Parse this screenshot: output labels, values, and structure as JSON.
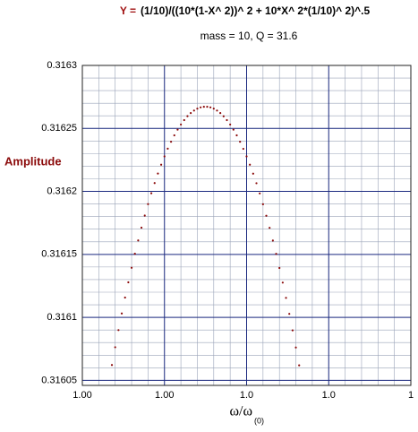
{
  "chart_data": {
    "type": "scatter",
    "title_parts": [
      "Y =",
      "(1/10)/((10*(1-X^ 2))^ 2 + 10*X^ 2*(1/10)^ 2)^.5"
    ],
    "subtitle": "mass = 10, Q = 31.6",
    "ylabel": "Amplitude",
    "xlabel": "ω/ω",
    "xlabel_sub": "(0)",
    "xlim": [
      0.999,
      1.001
    ],
    "xticks": [
      {
        "value": 0.999,
        "label": "1.00"
      },
      {
        "value": 0.9995,
        "label": "1.00"
      },
      {
        "value": 1.0,
        "label": "1.0"
      },
      {
        "value": 1.0005,
        "label": "1.0"
      },
      {
        "value": 1.001,
        "label": "1"
      }
    ],
    "ylim": [
      0.316046,
      0.3163
    ],
    "yticks": [
      0.31605,
      0.3161,
      0.31615,
      0.3162,
      0.31625,
      0.3163
    ],
    "grid": true,
    "minor_divisions": 5,
    "color": "#8b0a0a",
    "x": [
      0.99918,
      0.9992,
      0.99922,
      0.99924,
      0.99926,
      0.99928,
      0.9993,
      0.99932,
      0.99934,
      0.99936,
      0.99938,
      0.9994,
      0.99942,
      0.99944,
      0.99946,
      0.99948,
      0.9995,
      0.99952,
      0.99954,
      0.99956,
      0.99958,
      0.9996,
      0.99962,
      0.99964,
      0.99966,
      0.99968,
      0.9997,
      0.99972,
      0.99974,
      0.99976,
      0.99978,
      0.9998,
      0.99982,
      0.99984,
      0.99986,
      0.99988,
      0.9999,
      0.99992,
      0.99994,
      0.99996,
      0.99998,
      1,
      1.00002,
      1.00004,
      1.00006,
      1.00008,
      1.0001,
      1.00012,
      1.00014,
      1.00016,
      1.00018,
      1.0002,
      1.00022,
      1.00024,
      1.00026,
      1.00028,
      1.0003,
      1.00032
    ],
    "values": [
      0.3160622,
      0.3160763,
      0.3160899,
      0.3161031,
      0.3161157,
      0.3161278,
      0.3161394,
      0.3161505,
      0.3161611,
      0.3161712,
      0.3161808,
      0.3161899,
      0.3161985,
      0.3162066,
      0.3162142,
      0.3162212,
      0.3162278,
      0.3162339,
      0.3162394,
      0.3162445,
      0.316249,
      0.3162531,
      0.3162566,
      0.3162597,
      0.3162622,
      0.3162642,
      0.3162657,
      0.3162667,
      0.3162672,
      0.3162672,
      0.3162667,
      0.3162657,
      0.3162642,
      0.3162622,
      0.3162596,
      0.3162566,
      0.3162531,
      0.316249,
      0.3162445,
      0.3162394,
      0.3162338,
      0.3162278,
      0.3162212,
      0.3162141,
      0.3162065,
      0.3161984,
      0.3161898,
      0.3161807,
      0.3161711,
      0.316161,
      0.3161504,
      0.3161392,
      0.3161276,
      0.3161155,
      0.3161028,
      0.3160897,
      0.3160761,
      0.3160619
    ]
  }
}
